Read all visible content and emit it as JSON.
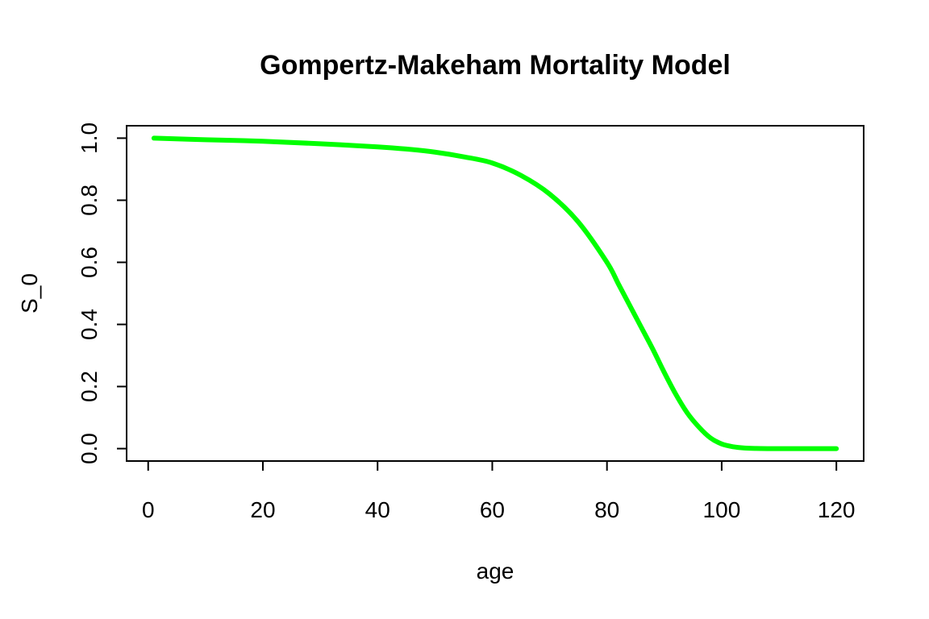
{
  "chart_data": {
    "type": "line",
    "title": "Gompertz-Makeham Mortality Model",
    "xlabel": "age",
    "ylabel": "S_0",
    "xlim": [
      1,
      120
    ],
    "ylim": [
      0,
      1
    ],
    "x_ticks": [
      "0",
      "20",
      "40",
      "60",
      "80",
      "100",
      "120"
    ],
    "y_ticks": [
      "0.0",
      "0.2",
      "0.4",
      "0.6",
      "0.8",
      "1.0"
    ],
    "grid": false,
    "legend": "none",
    "series": [
      {
        "color": "#00ff00",
        "x": [
          1,
          10,
          20,
          30,
          40,
          45,
          50,
          55,
          60,
          65,
          70,
          75,
          80,
          82,
          84,
          86,
          88,
          90,
          92,
          94,
          96,
          98,
          100,
          102,
          104,
          106,
          108,
          110,
          115,
          120
        ],
        "y": [
          1.0,
          0.995,
          0.99,
          0.982,
          0.972,
          0.965,
          0.955,
          0.94,
          0.92,
          0.88,
          0.82,
          0.73,
          0.6,
          0.53,
          0.46,
          0.39,
          0.32,
          0.245,
          0.175,
          0.115,
          0.07,
          0.035,
          0.015,
          0.006,
          0.002,
          0.0005,
          0.0,
          0.0,
          0.0,
          0.0
        ]
      }
    ]
  }
}
